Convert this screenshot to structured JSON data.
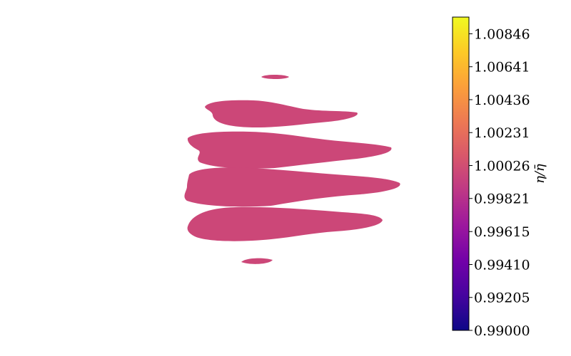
{
  "chart_data": {
    "type": "contour",
    "title": "",
    "colormap": "plasma",
    "fill_color": "#cc4778",
    "colorbar": {
      "label": "η/η̄",
      "range": [
        0.99,
        1.0095
      ],
      "ticks": [
        "0.99000",
        "0.99205",
        "0.99410",
        "0.99615",
        "0.99821",
        "1.00026",
        "1.00231",
        "1.00436",
        "1.00641",
        "1.00846"
      ],
      "colors": [
        "#0d0887",
        "#46039f",
        "#7201a8",
        "#9c179e",
        "#bd3786",
        "#d8576b",
        "#ed7953",
        "#fb9f3a",
        "#fdca26",
        "#f0f921"
      ]
    },
    "axes_visible": false,
    "regions": [
      "top-small-blob",
      "upper-band",
      "upper-middle-band",
      "lower-middle-band",
      "lower-band",
      "bottom-small-blob"
    ]
  }
}
